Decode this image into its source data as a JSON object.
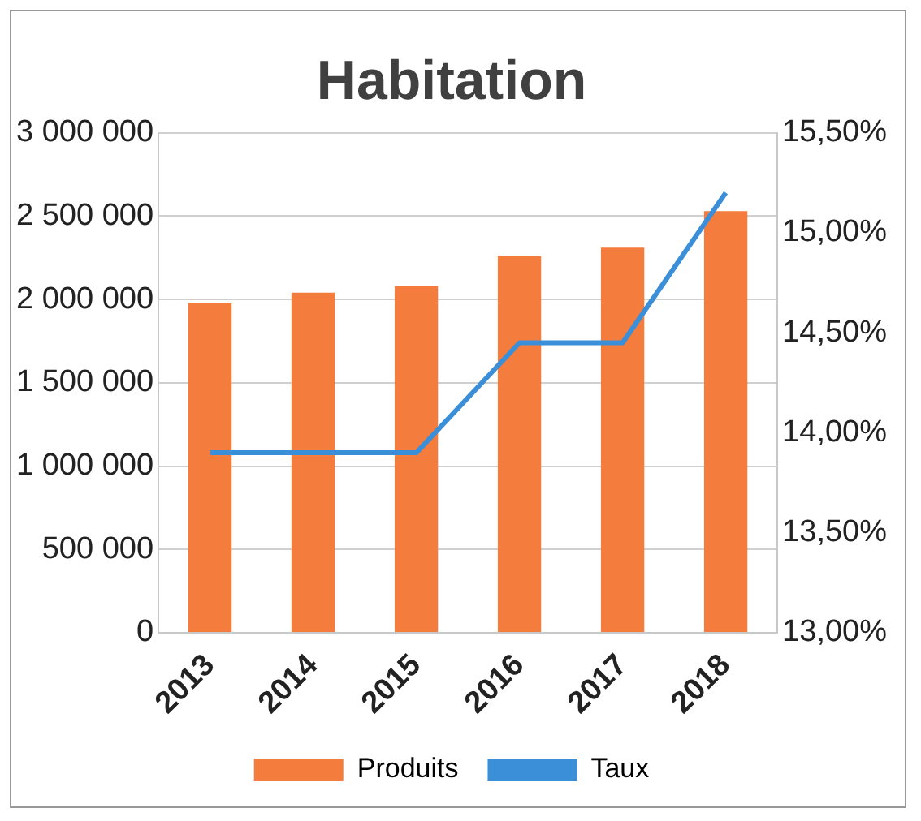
{
  "chart_data": {
    "type": "bar",
    "title": "Habitation",
    "categories": [
      "2013",
      "2014",
      "2015",
      "2016",
      "2017",
      "2018"
    ],
    "series": [
      {
        "name": "Produits",
        "color": "#f47c3c",
        "values": [
          1980000,
          2040000,
          2080000,
          2260000,
          2310000,
          2530000
        ]
      },
      {
        "name": "Taux",
        "type": "line",
        "axis": "y2",
        "color": "#3b8fd9",
        "values": [
          13.9,
          13.9,
          13.9,
          14.45,
          14.45,
          15.2
        ]
      }
    ],
    "ylim": [
      0,
      3000000
    ],
    "yticks": [
      {
        "value": 0,
        "label": "0"
      },
      {
        "value": 500000,
        "label": "500 000"
      },
      {
        "value": 1000000,
        "label": "1 000 000"
      },
      {
        "value": 1500000,
        "label": "1 500 000"
      },
      {
        "value": 2000000,
        "label": "2 000 000"
      },
      {
        "value": 2500000,
        "label": "2 500 000"
      },
      {
        "value": 3000000,
        "label": "3 000 000"
      }
    ],
    "y2lim": [
      13,
      15.5
    ],
    "y2ticks": [
      {
        "value": 13,
        "label": "13,00%"
      },
      {
        "value": 13.5,
        "label": "13,50%"
      },
      {
        "value": 14,
        "label": "14,00%"
      },
      {
        "value": 14.5,
        "label": "14,50%"
      },
      {
        "value": 15,
        "label": "15,00%"
      },
      {
        "value": 15.5,
        "label": "15,50%"
      }
    ],
    "grid": "y",
    "legend": "bottom",
    "marker": "none",
    "line_style": "solid"
  }
}
